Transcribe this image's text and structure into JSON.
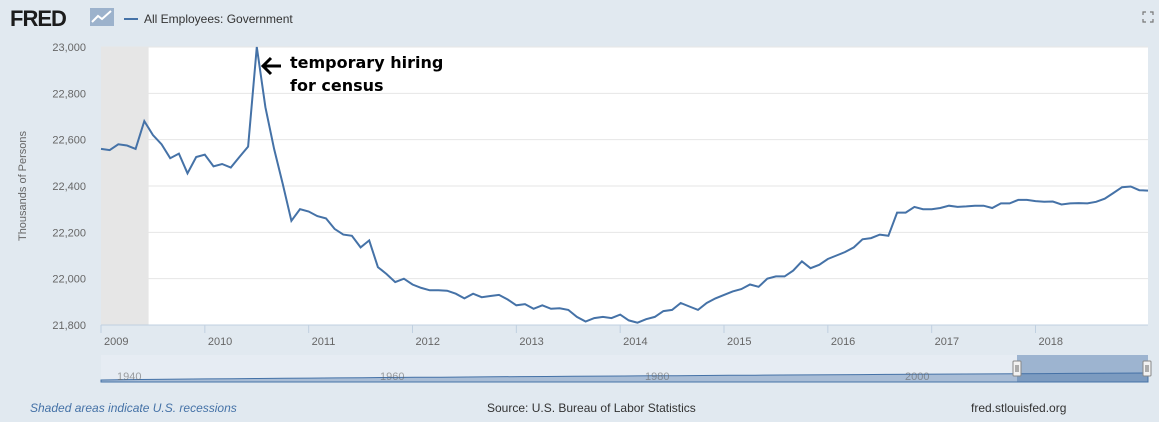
{
  "brand": {
    "logo_text": "FRED",
    "logo_icon": "line-graph-icon"
  },
  "header": {
    "expand_icon": "expand-icon"
  },
  "colors": {
    "line": "#4572a7",
    "recession": "#e6e6e6",
    "background": "#e1e9f0",
    "navigator_fill": "#a9bdd6"
  },
  "chart_data": {
    "type": "line",
    "title": "",
    "xlabel": "",
    "ylabel": "Thousands of Persons",
    "ylim": [
      21800,
      23000
    ],
    "y_ticks": [
      "23,000",
      "22,800",
      "22,600",
      "22,400",
      "22,200",
      "22,000",
      "21,800"
    ],
    "x_tick_labels": [
      "2009",
      "2010",
      "2011",
      "2012",
      "2013",
      "2014",
      "2015",
      "2016",
      "2017",
      "2018"
    ],
    "grid": true,
    "legend_position": "top-left",
    "recession_shading": {
      "start": "2009-01",
      "end": "2009-06"
    },
    "annotation": {
      "text": [
        "temporary hiring",
        "for census"
      ],
      "target_x": "2010-05",
      "target_y": 23000
    },
    "series": [
      {
        "name": "All Employees: Government",
        "x_start": "2009-01",
        "frequency": "monthly",
        "values": [
          22560,
          22555,
          22580,
          22575,
          22560,
          22680,
          22620,
          22580,
          22520,
          22540,
          22455,
          22525,
          22535,
          22485,
          22495,
          22480,
          22525,
          22570,
          23000,
          22740,
          22560,
          22410,
          22250,
          22300,
          22290,
          22270,
          22260,
          22215,
          22190,
          22185,
          22135,
          22165,
          22050,
          22020,
          21985,
          22000,
          21975,
          21960,
          21950,
          21950,
          21948,
          21935,
          21915,
          21935,
          21920,
          21925,
          21930,
          21910,
          21885,
          21890,
          21870,
          21885,
          21870,
          21872,
          21865,
          21835,
          21815,
          21830,
          21835,
          21830,
          21845,
          21820,
          21810,
          21825,
          21835,
          21860,
          21865,
          21895,
          21880,
          21865,
          21895,
          21915,
          21930,
          21945,
          21955,
          21975,
          21965,
          22000,
          22010,
          22010,
          22035,
          22075,
          22045,
          22060,
          22085,
          22100,
          22115,
          22135,
          22170,
          22175,
          22190,
          22185,
          22285,
          22285,
          22310,
          22300,
          22300,
          22305,
          22315,
          22310,
          22312,
          22315,
          22315,
          22305,
          22325,
          22325,
          22340,
          22340,
          22335,
          22332,
          22333,
          22320,
          22325,
          22326,
          22325,
          22332,
          22345,
          22370,
          22395,
          22398,
          22382,
          22380
        ]
      }
    ],
    "navigator": {
      "x_tick_labels": [
        "1940",
        "1960",
        "1980",
        "2000"
      ]
    }
  },
  "footer": {
    "note": "Shaded areas indicate U.S. recessions",
    "source": "Source: U.S. Bureau of Labor Statistics",
    "url": "fred.stlouisfed.org"
  }
}
